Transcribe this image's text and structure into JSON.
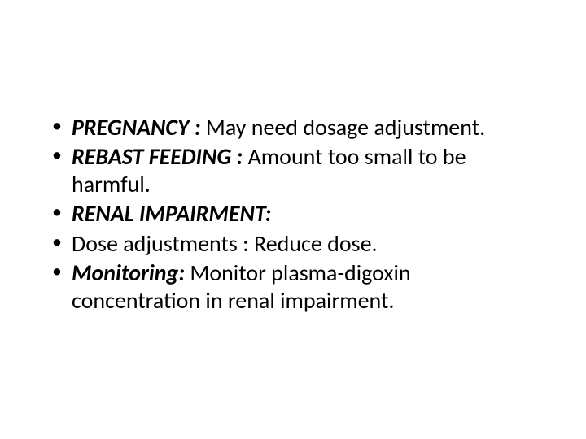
{
  "slide": {
    "background_color": "#ffffff",
    "text_color": "#000000",
    "font_family": "Calibri",
    "font_size_pt": 28,
    "bullets": [
      {
        "label": "PREGNANCY : ",
        "text": "May need dosage adjustment."
      },
      {
        "label": "REBAST FEEDING : ",
        "text": "Amount too small to be harmful."
      },
      {
        "label": "RENAL IMPAIRMENT:",
        "text": ""
      },
      {
        "label": "",
        "text": "Dose adjustments : Reduce dose."
      },
      {
        "label": "Monitoring: ",
        "text": "Monitor plasma-digoxin concentration in renal impairment."
      }
    ]
  }
}
